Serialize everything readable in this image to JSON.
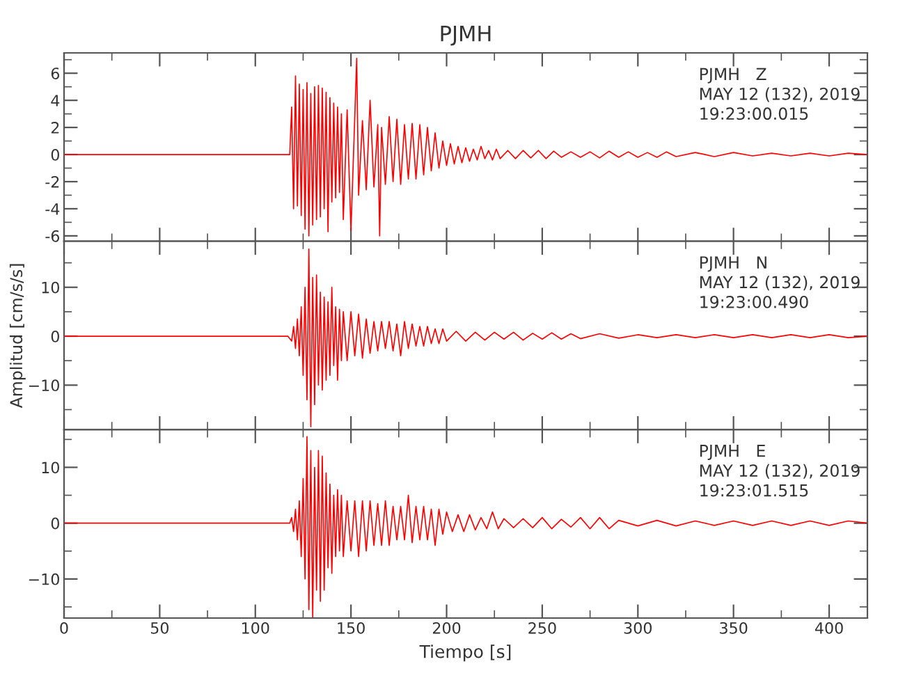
{
  "chart_data": [
    {
      "type": "line",
      "title": "PJMH",
      "annotations": [
        "PJMH   Z",
        "MAY 12 (132), 2019",
        "19:23:00.015"
      ],
      "tick_labels": "y",
      "grid": false,
      "legend": false,
      "xlim": [
        0,
        420
      ],
      "xticks": [
        0,
        {
          "value": 25,
          "label": null
        },
        50,
        {
          "value": 75,
          "label": null
        },
        100,
        {
          "value": 125,
          "label": null
        },
        150,
        {
          "value": 175,
          "label": null
        },
        200,
        {
          "value": 225,
          "label": null
        },
        250,
        {
          "value": 275,
          "label": null
        },
        300,
        {
          "value": 325,
          "label": null
        },
        350,
        {
          "value": 375,
          "label": null
        },
        400
      ],
      "ylim": [
        -6.4,
        7.5
      ],
      "yticks": [
        -6,
        {
          "value": -5,
          "label": null
        },
        -4,
        {
          "value": -3,
          "label": null
        },
        -2,
        {
          "value": -1,
          "label": null
        },
        0,
        {
          "value": 1,
          "label": null
        },
        2,
        {
          "value": 3,
          "label": null
        },
        4,
        {
          "value": 5,
          "label": null
        },
        6,
        {
          "value": 7,
          "label": null
        }
      ],
      "series": [
        {
          "color": "#ff0000",
          "x": [
            0,
            118,
            119,
            120,
            121,
            122,
            123,
            124,
            125,
            126,
            127,
            128,
            129,
            130,
            131,
            132,
            133,
            134,
            135,
            136,
            137,
            138,
            139,
            140,
            141,
            142,
            143,
            144,
            145,
            146,
            148,
            150,
            152,
            153,
            154,
            156,
            158,
            160,
            162,
            164,
            165,
            166,
            168,
            170,
            172,
            174,
            176,
            178,
            180,
            182,
            184,
            186,
            188,
            190,
            192,
            194,
            196,
            198,
            200,
            202,
            204,
            206,
            208,
            210,
            212,
            214,
            216,
            218,
            220,
            222,
            224,
            226,
            228,
            232,
            236,
            240,
            244,
            248,
            252,
            256,
            260,
            265,
            270,
            275,
            280,
            285,
            290,
            295,
            300,
            305,
            310,
            315,
            320,
            330,
            340,
            350,
            360,
            370,
            380,
            390,
            400,
            410,
            420
          ],
          "values": [
            0,
            0,
            3.5,
            -4,
            5.8,
            -3.8,
            5.2,
            -4.5,
            4.8,
            -5.5,
            5.3,
            -6,
            4.5,
            -5.2,
            5.0,
            -4.8,
            5.1,
            -4.6,
            4.9,
            -4.0,
            4.6,
            -5.7,
            4.2,
            -3.5,
            3.8,
            -3.2,
            3.5,
            -2.8,
            3.0,
            -4.8,
            3.3,
            -5.6,
            2.8,
            7.1,
            -3.0,
            2.5,
            -2.6,
            4.0,
            -2.4,
            2.2,
            -6.0,
            2.0,
            -2.2,
            2.8,
            -2.0,
            2.6,
            -2.2,
            2.2,
            -1.8,
            2.3,
            -1.8,
            2.2,
            -1.5,
            2.0,
            -1.2,
            1.6,
            -1.0,
            1.0,
            -0.8,
            0.8,
            -0.7,
            0.6,
            -0.6,
            0.5,
            -0.5,
            0.4,
            -0.4,
            0.6,
            -0.3,
            0.3,
            -0.4,
            0.4,
            -0.3,
            0.3,
            -0.3,
            0.3,
            -0.25,
            0.3,
            -0.3,
            0.25,
            -0.2,
            0.2,
            -0.2,
            0.2,
            -0.25,
            0.25,
            -0.2,
            0.2,
            -0.2,
            0.15,
            -0.2,
            0.2,
            -0.15,
            0.15,
            -0.15,
            0.15,
            -0.1,
            0.1,
            -0.1,
            0.1,
            -0.1,
            0.1,
            0
          ]
        }
      ]
    },
    {
      "type": "line",
      "ylabel": "Amplitud [cm/s/s]",
      "annotations": [
        "PJMH   N",
        "MAY 12 (132), 2019",
        "19:23:00.490"
      ],
      "tick_labels": "y",
      "grid": false,
      "legend": false,
      "xlim": [
        0,
        420
      ],
      "xticks": [
        0,
        {
          "value": 25,
          "label": null
        },
        50,
        {
          "value": 75,
          "label": null
        },
        100,
        {
          "value": 125,
          "label": null
        },
        150,
        {
          "value": 175,
          "label": null
        },
        200,
        {
          "value": 225,
          "label": null
        },
        250,
        {
          "value": 275,
          "label": null
        },
        300,
        {
          "value": 325,
          "label": null
        },
        350,
        {
          "value": 375,
          "label": null
        },
        400
      ],
      "ylim": [
        -19.1,
        19.4
      ],
      "yticks": [
        {
          "value": -15,
          "label": null
        },
        {
          "value": -10,
          "label": "−10"
        },
        {
          "value": -5,
          "label": null
        },
        0,
        {
          "value": 5,
          "label": null
        },
        10,
        {
          "value": 15,
          "label": null
        }
      ],
      "series": [
        {
          "color": "#ff0000",
          "x": [
            0,
            117,
            119,
            120,
            121,
            122,
            123,
            124,
            125,
            126,
            127,
            128,
            129,
            130,
            131,
            132,
            133,
            134,
            135,
            136,
            137,
            138,
            139,
            140,
            141,
            142,
            143,
            144,
            145,
            146,
            148,
            150,
            152,
            154,
            156,
            158,
            160,
            162,
            164,
            166,
            168,
            170,
            172,
            174,
            176,
            178,
            180,
            182,
            184,
            186,
            188,
            190,
            192,
            194,
            196,
            198,
            200,
            205,
            210,
            215,
            220,
            225,
            230,
            235,
            240,
            245,
            250,
            255,
            260,
            265,
            270,
            280,
            290,
            300,
            310,
            320,
            330,
            340,
            350,
            360,
            370,
            380,
            390,
            400,
            410,
            420
          ],
          "values": [
            0,
            0,
            -1,
            2,
            -2.5,
            3.5,
            -4,
            6,
            -8,
            10,
            -13,
            17.8,
            -18.5,
            12,
            -14,
            12.5,
            -10,
            9,
            -11,
            8,
            -9,
            7,
            -8,
            10,
            -6,
            6,
            -9,
            5.5,
            -5,
            5,
            -5,
            5,
            -4,
            4.5,
            -4.5,
            3.5,
            -3.5,
            3,
            -3,
            3,
            -2.5,
            3,
            -3,
            2.5,
            -4,
            3,
            -2.5,
            2.5,
            -2,
            2,
            -2,
            2,
            -1.5,
            1.5,
            -1.5,
            1.5,
            -1,
            1,
            -1,
            0.8,
            -0.8,
            0.8,
            -0.6,
            0.8,
            -0.8,
            0.6,
            -0.6,
            0.7,
            -0.6,
            0.5,
            -0.5,
            0.5,
            -0.4,
            0.3,
            -0.3,
            0.3,
            -0.3,
            0.3,
            -0.3,
            0.3,
            -0.3,
            0.3,
            -0.3,
            0.3,
            -0.3,
            0
          ]
        }
      ]
    },
    {
      "type": "line",
      "xlabel": "Tiempo [s]",
      "annotations": [
        "PJMH   E",
        "MAY 12 (132), 2019",
        "19:23:01.515"
      ],
      "grid": false,
      "legend": false,
      "xlim": [
        0,
        420
      ],
      "xticks": [
        0,
        {
          "value": 25,
          "label": null
        },
        50,
        {
          "value": 75,
          "label": null
        },
        100,
        {
          "value": 125,
          "label": null
        },
        150,
        {
          "value": 175,
          "label": null
        },
        200,
        {
          "value": 225,
          "label": null
        },
        250,
        {
          "value": 275,
          "label": null
        },
        300,
        {
          "value": 325,
          "label": null
        },
        350,
        {
          "value": 375,
          "label": null
        },
        400
      ],
      "ylim": [
        -17,
        16.75
      ],
      "yticks": [
        {
          "value": -15,
          "label": null
        },
        {
          "value": -10,
          "label": "−10"
        },
        {
          "value": -5,
          "label": null
        },
        0,
        {
          "value": 5,
          "label": null
        },
        10,
        {
          "value": 15,
          "label": null
        }
      ],
      "series": [
        {
          "color": "#ff0000",
          "x": [
            0,
            118,
            119,
            120,
            121,
            122,
            123,
            124,
            125,
            126,
            127,
            128,
            129,
            130,
            131,
            132,
            133,
            134,
            135,
            136,
            137,
            138,
            139,
            140,
            141,
            142,
            143,
            144,
            145,
            146,
            148,
            150,
            152,
            154,
            156,
            158,
            160,
            162,
            164,
            166,
            168,
            170,
            172,
            174,
            176,
            178,
            180,
            182,
            184,
            186,
            188,
            190,
            192,
            194,
            196,
            198,
            200,
            203,
            206,
            209,
            212,
            215,
            218,
            221,
            224,
            227,
            230,
            235,
            240,
            245,
            250,
            255,
            260,
            265,
            270,
            275,
            280,
            285,
            290,
            300,
            310,
            320,
            330,
            340,
            350,
            360,
            370,
            380,
            390,
            400,
            410,
            420
          ],
          "values": [
            0,
            0,
            1,
            -1.5,
            2.5,
            -3,
            4,
            -6,
            8,
            -10,
            15.5,
            -15.5,
            13,
            -17,
            10,
            -12,
            13,
            -14,
            12,
            -12,
            9,
            -8,
            7,
            -9,
            5,
            -6,
            6,
            -5,
            5,
            -6,
            4,
            -5,
            4,
            -6,
            4,
            -5,
            4,
            -4,
            3.5,
            -4,
            4,
            -4,
            3,
            -3,
            3,
            -3,
            5,
            -3.5,
            3,
            -3,
            3,
            -3,
            2.5,
            -4,
            2.5,
            -2,
            2,
            -1.5,
            1.5,
            -1.5,
            1.5,
            -1.2,
            1,
            -1,
            2,
            -1,
            0.8,
            -0.8,
            0.8,
            -0.8,
            1,
            -1,
            0.7,
            -0.7,
            1,
            -1,
            1,
            -1,
            0.5,
            -0.5,
            0.5,
            -0.5,
            0.4,
            -0.4,
            0.4,
            -0.4,
            0.4,
            -0.4,
            0.4,
            -0.4,
            0.4,
            0
          ]
        }
      ]
    }
  ]
}
